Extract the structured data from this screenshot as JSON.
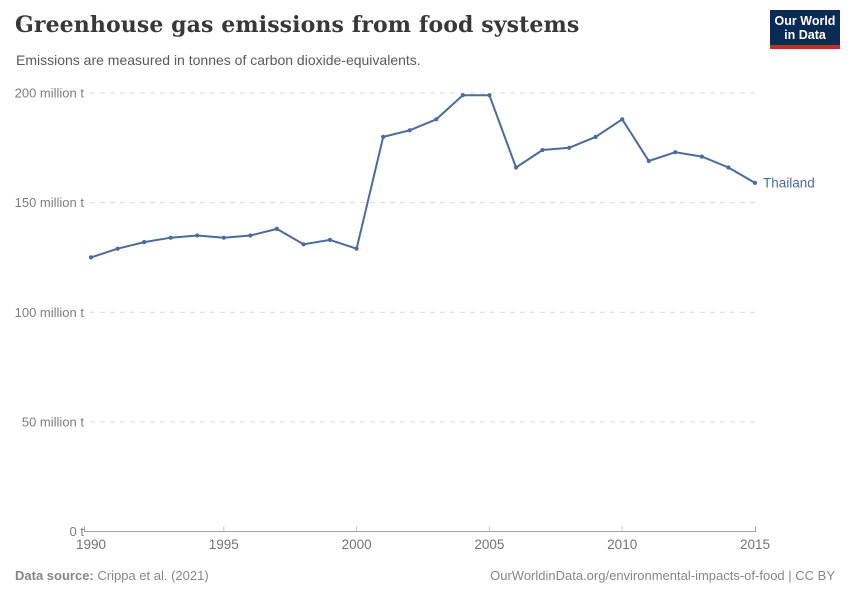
{
  "header": {
    "title": "Greenhouse gas emissions from food systems",
    "subtitle": "Emissions are measured in tonnes of carbon dioxide-equivalents."
  },
  "logo": {
    "line1": "Our World",
    "line2": "in Data",
    "bg_color": "#0B2A54",
    "accent_color": "#D02A20"
  },
  "chart_data": {
    "type": "line",
    "title": "Greenhouse gas emissions from food systems",
    "xlabel": "",
    "ylabel": "",
    "unit": "million t",
    "xlim": [
      1990,
      2015
    ],
    "ylim": [
      0,
      200
    ],
    "grid": "horizontal-dashed",
    "legend_position": "end-of-line-label",
    "x_ticks": [
      1990,
      1995,
      2000,
      2005,
      2010,
      2015
    ],
    "y_ticks": [
      {
        "value": 0,
        "label": "0 t"
      },
      {
        "value": 50,
        "label": "50 million t"
      },
      {
        "value": 100,
        "label": "100 million t"
      },
      {
        "value": 150,
        "label": "150 million t"
      },
      {
        "value": 200,
        "label": "200 million t"
      }
    ],
    "series": [
      {
        "name": "Thailand",
        "color": "#4C6A9C",
        "x": [
          1990,
          1991,
          1992,
          1993,
          1994,
          1995,
          1996,
          1997,
          1998,
          1999,
          2000,
          2001,
          2002,
          2003,
          2004,
          2005,
          2006,
          2007,
          2008,
          2009,
          2010,
          2011,
          2012,
          2013,
          2014,
          2015
        ],
        "values": [
          125,
          129,
          132,
          134,
          135,
          134,
          135,
          138,
          131,
          133,
          129,
          180,
          183,
          188,
          199,
          199,
          166,
          174,
          175,
          180,
          188,
          169,
          173,
          171,
          166,
          159
        ]
      }
    ]
  },
  "footer": {
    "source_label": "Data source:",
    "source_value": "Crippa et al. (2021)",
    "attribution": "OurWorldinData.org/environmental-impacts-of-food | CC BY"
  }
}
